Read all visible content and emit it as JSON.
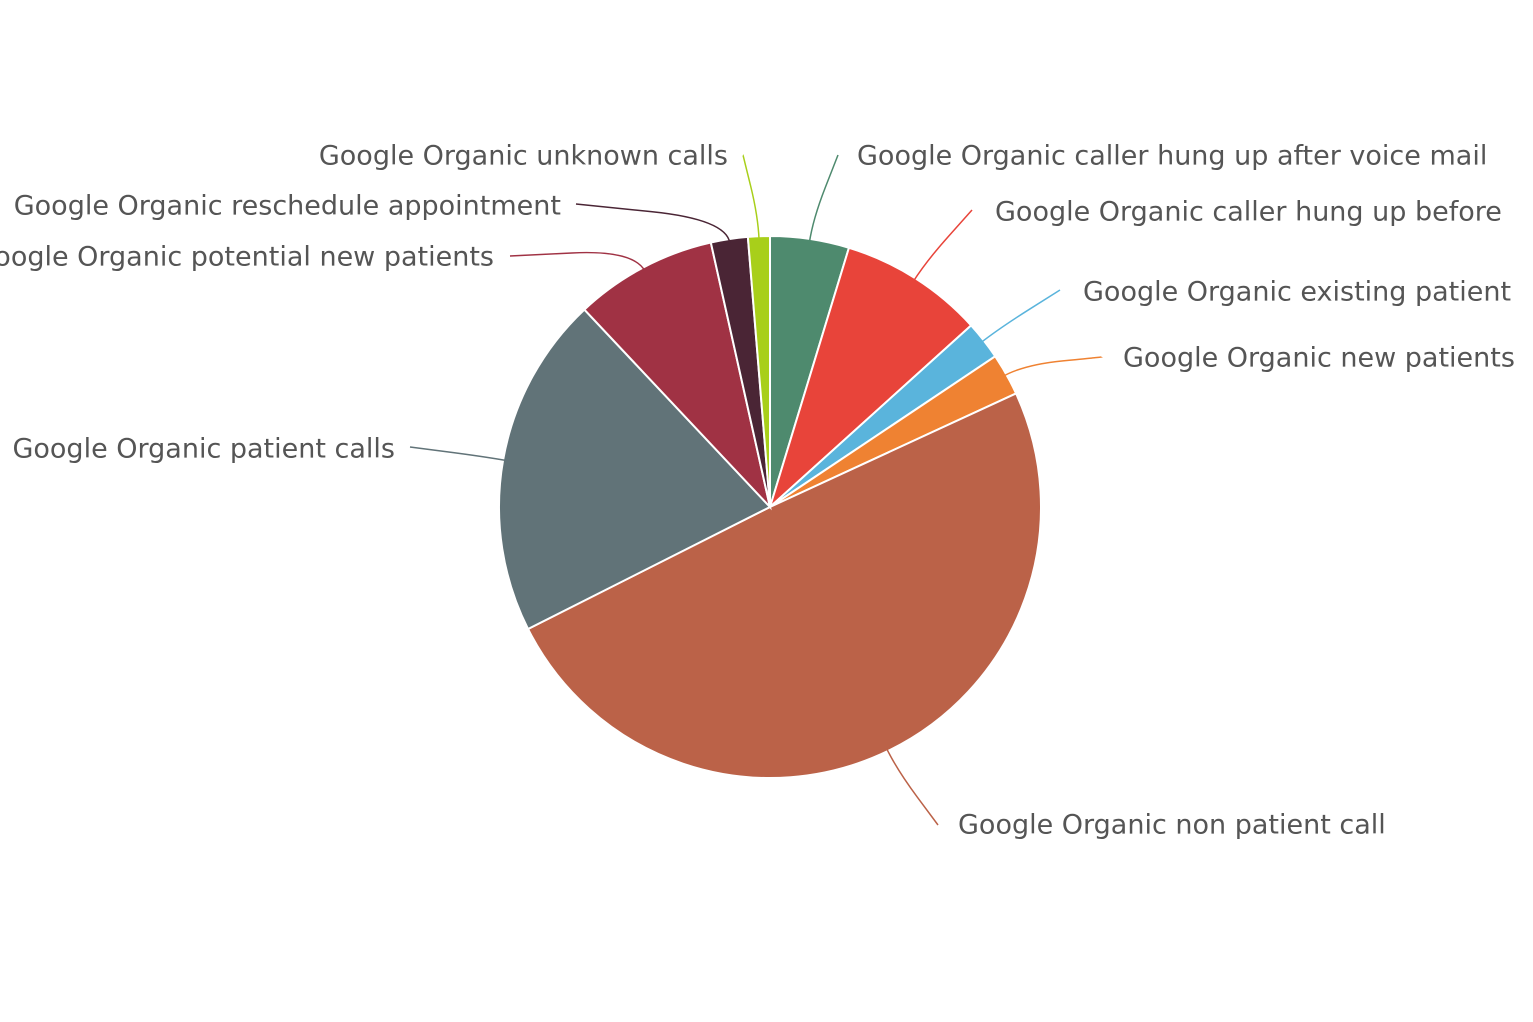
{
  "chart_data": {
    "type": "pie",
    "categories": [
      "Google Organic caller hung up after voice mail",
      "Google Organic caller hung up before",
      "Google Organic existing patient",
      "Google Organic new patients",
      "Google Organic non patient call",
      "Google Organic patient calls",
      "Google Organic potential new patients",
      "Google Organic reschedule appointment",
      "Google Organic unknown calls"
    ],
    "values": [
      4.7,
      8.6,
      2.3,
      2.5,
      49.4,
      20.4,
      8.5,
      2.2,
      1.3
    ],
    "colors": [
      "#4e8a6e",
      "#e8443a",
      "#5ab4dc",
      "#ef8232",
      "#bb6248",
      "#617378",
      "#a03244",
      "#4a2535",
      "#a8cf1a"
    ]
  }
}
